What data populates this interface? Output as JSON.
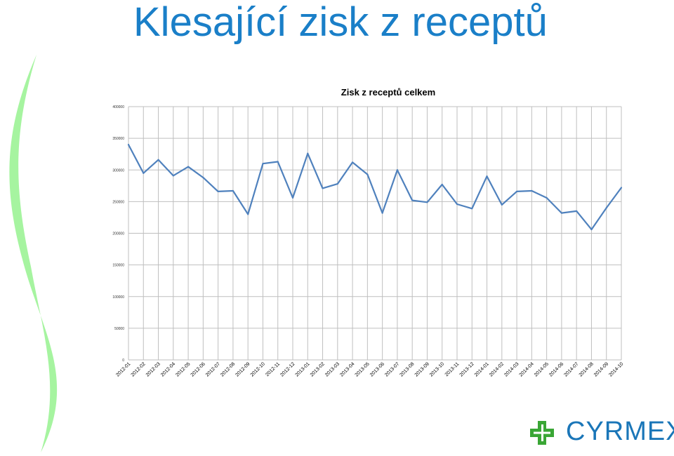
{
  "slide": {
    "title": "Klesající zisk z receptů"
  },
  "logo": {
    "text": "CYRMEX",
    "cross_color": "#3aa635",
    "text_color": "#1a76b8"
  },
  "colors": {
    "title": "#1a7fc8",
    "line": "#4f81bd",
    "grid": "#bfbfbf",
    "decor": "#a6f4a0"
  },
  "chart_data": {
    "type": "line",
    "title": "Zisk z receptů celkem",
    "xlabel": "",
    "ylabel": "",
    "ylim": [
      0,
      400000
    ],
    "yticks": [
      0,
      50000,
      100000,
      150000,
      200000,
      250000,
      300000,
      350000,
      400000
    ],
    "ytick_labels": [
      "0",
      "50000",
      "100000",
      "150000",
      "200000",
      "250000",
      "300000",
      "350000",
      "400000"
    ],
    "grid": true,
    "legend": "none",
    "categories": [
      "2012-01",
      "2012-02",
      "2012-03",
      "2012-04",
      "2012-05",
      "2012-06",
      "2012-07",
      "2012-08",
      "2012-09",
      "2012-10",
      "2012-11",
      "2012-12",
      "2013-01",
      "2013-02",
      "2013-03",
      "2013-04",
      "2013-05",
      "2013-06",
      "2013-07",
      "2013-08",
      "2013-09",
      "2013-10",
      "2013-11",
      "2013-12",
      "2014-01",
      "2014-02",
      "2014-03",
      "2014-04",
      "2014-05",
      "2014-06",
      "2014-07",
      "2014-08",
      "2014-09",
      "2014-10"
    ],
    "series": [
      {
        "values": [
          340000,
          295000,
          316000,
          291000,
          305000,
          288000,
          266000,
          267000,
          230000,
          310000,
          313000,
          256000,
          326000,
          271000,
          278000,
          312000,
          293000,
          232000,
          300000,
          252000,
          249000,
          277000,
          246000,
          239000,
          290000,
          245000,
          266000,
          267000,
          256000,
          232000,
          235000,
          206000,
          240000,
          272000
        ]
      }
    ]
  }
}
